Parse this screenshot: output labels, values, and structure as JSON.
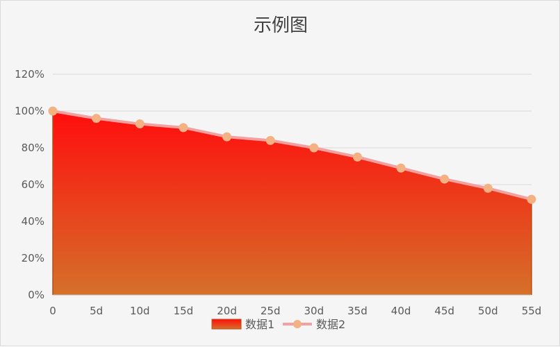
{
  "chart_data": {
    "type": "area",
    "title": "示例图",
    "xlabel": "",
    "ylabel": "",
    "categories": [
      "0",
      "5d",
      "10d",
      "15d",
      "20d",
      "25d",
      "30d",
      "35d",
      "40d",
      "45d",
      "50d",
      "55d"
    ],
    "y_ticks": [
      "0%",
      "20%",
      "40%",
      "60%",
      "80%",
      "100%",
      "120%"
    ],
    "ylim": [
      0,
      120
    ],
    "y_unit": "%",
    "grid": true,
    "legend_position": "bottom",
    "series": [
      {
        "name": "数据1",
        "type": "area",
        "values": [
          100,
          96,
          92.5,
          90.5,
          85.5,
          83.5,
          79.5,
          74.5,
          68.5,
          62.5,
          57.5,
          51.5
        ],
        "colors": {
          "gradient_top": "#ff0d0d",
          "gradient_bottom": "#d5702a",
          "edge": "#b5501a"
        }
      },
      {
        "name": "数据2",
        "type": "line",
        "values": [
          100,
          96,
          93,
          91,
          86,
          84,
          80,
          75,
          69,
          63,
          58,
          52
        ],
        "colors": {
          "line": "#f4a0a0",
          "marker": "#f4b183"
        }
      }
    ]
  }
}
